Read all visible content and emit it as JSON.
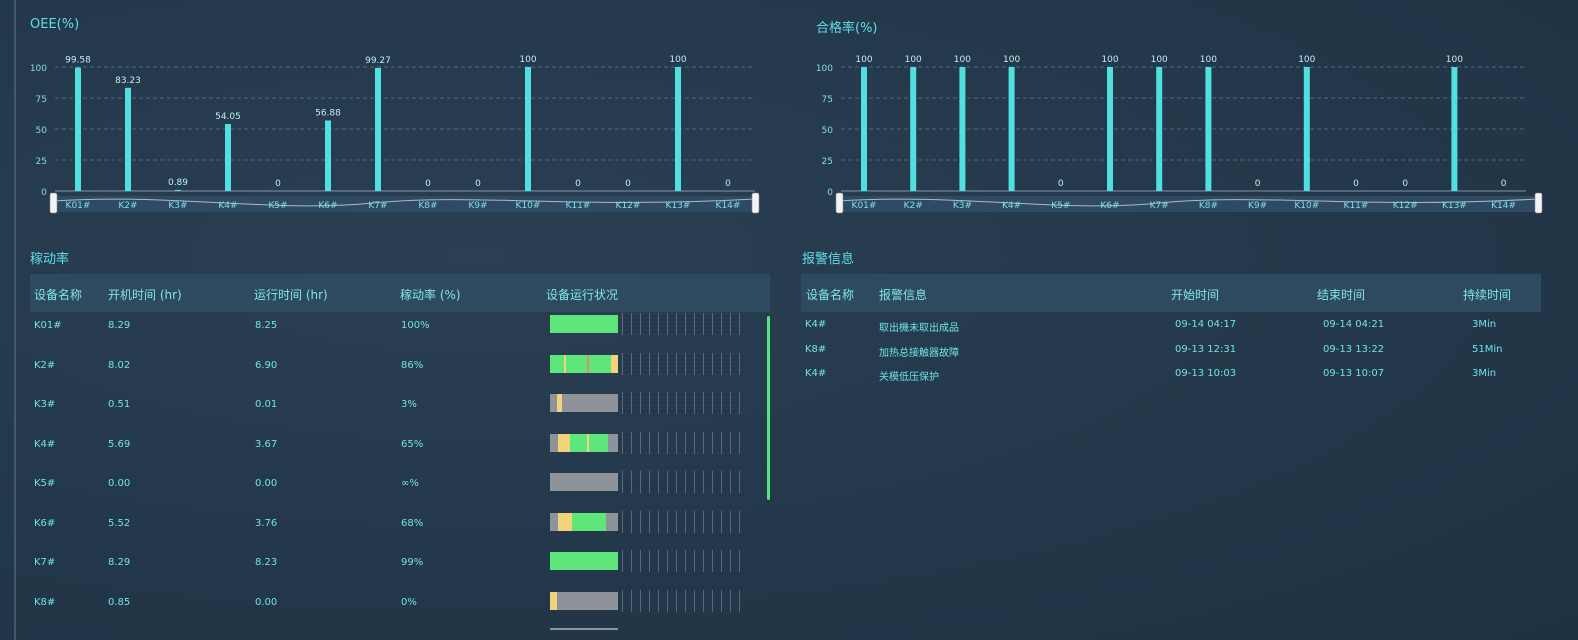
{
  "oee_panel": {
    "title": "OEE(%)"
  },
  "pass_panel": {
    "title": "合格率(%)"
  },
  "utilization_panel": {
    "title": "稼动率",
    "headers": [
      "设备名称",
      "开机时间 (hr)",
      "运行时间 (hr)",
      "稼动率 (%)",
      "设备运行状况"
    ],
    "rows": [
      {
        "name": "K01#",
        "on": "8.29",
        "run": "8.25",
        "rate": "100%"
      },
      {
        "name": "K2#",
        "on": "8.02",
        "run": "6.90",
        "rate": "86%"
      },
      {
        "name": "K3#",
        "on": "0.51",
        "run": "0.01",
        "rate": "3%"
      },
      {
        "name": "K4#",
        "on": "5.69",
        "run": "3.67",
        "rate": "65%"
      },
      {
        "name": "K5#",
        "on": "0.00",
        "run": "0.00",
        "rate": "∞%"
      },
      {
        "name": "K6#",
        "on": "5.52",
        "run": "3.76",
        "rate": "68%"
      },
      {
        "name": "K7#",
        "on": "8.29",
        "run": "8.23",
        "rate": "99%"
      },
      {
        "name": "K8#",
        "on": "0.85",
        "run": "0.00",
        "rate": "0%"
      }
    ],
    "status_colors": {
      "run": "#5ee67a",
      "idle": "#f2d37a",
      "off": "#8e9299",
      "fault": "#e38a6a"
    },
    "status_bars": [
      [
        {
          "s": 0,
          "e": 1,
          "c": "run"
        }
      ],
      [
        {
          "s": 0,
          "e": 0.2,
          "c": "run"
        },
        {
          "s": 0.2,
          "e": 0.24,
          "c": "idle"
        },
        {
          "s": 0.24,
          "e": 0.55,
          "c": "run"
        },
        {
          "s": 0.55,
          "e": 0.58,
          "c": "fault"
        },
        {
          "s": 0.58,
          "e": 0.9,
          "c": "run"
        },
        {
          "s": 0.9,
          "e": 1,
          "c": "idle"
        }
      ],
      [
        {
          "s": 0,
          "e": 0.1,
          "c": "off"
        },
        {
          "s": 0.1,
          "e": 0.18,
          "c": "idle"
        },
        {
          "s": 0.18,
          "e": 1,
          "c": "off"
        }
      ],
      [
        {
          "s": 0,
          "e": 0.12,
          "c": "off"
        },
        {
          "s": 0.12,
          "e": 0.3,
          "c": "idle"
        },
        {
          "s": 0.3,
          "e": 0.55,
          "c": "run"
        },
        {
          "s": 0.55,
          "e": 0.58,
          "c": "idle"
        },
        {
          "s": 0.58,
          "e": 0.85,
          "c": "run"
        },
        {
          "s": 0.85,
          "e": 1,
          "c": "off"
        }
      ],
      [
        {
          "s": 0,
          "e": 1,
          "c": "off"
        }
      ],
      [
        {
          "s": 0,
          "e": 0.12,
          "c": "off"
        },
        {
          "s": 0.12,
          "e": 0.32,
          "c": "idle"
        },
        {
          "s": 0.32,
          "e": 0.82,
          "c": "run"
        },
        {
          "s": 0.82,
          "e": 1,
          "c": "off"
        }
      ],
      [
        {
          "s": 0,
          "e": 1,
          "c": "run"
        }
      ],
      [
        {
          "s": 0,
          "e": 0.1,
          "c": "idle"
        },
        {
          "s": 0.1,
          "e": 1,
          "c": "off"
        }
      ]
    ]
  },
  "alarm_panel": {
    "title": "报警信息",
    "headers": [
      "设备名称",
      "报警信息",
      "开始时间",
      "结束时间",
      "持续时间"
    ],
    "rows": [
      {
        "device": "K4#",
        "message": "取出機未取出成品",
        "start": "09-14 04:17",
        "end": "09-14 04:21",
        "duration": "3Min"
      },
      {
        "device": "K8#",
        "message": "加热总接触器故障",
        "start": "09-13 12:31",
        "end": "09-13 13:22",
        "duration": "51Min"
      },
      {
        "device": "K4#",
        "message": "关模低压保护",
        "start": "09-13 10:03",
        "end": "09-13 10:07",
        "duration": "3Min"
      }
    ]
  },
  "chart_data": [
    {
      "type": "bar",
      "title": "OEE(%)",
      "categories": [
        "K01#",
        "K2#",
        "K3#",
        "K4#",
        "K5#",
        "K6#",
        "K7#",
        "K8#",
        "K9#",
        "K10#",
        "K11#",
        "K12#",
        "K13#",
        "K14#"
      ],
      "values": [
        99.58,
        83.23,
        0.89,
        54.05,
        0,
        56.88,
        99.27,
        0,
        0,
        100,
        0,
        0,
        100,
        0
      ],
      "labels": [
        "99.58",
        "83.23",
        "0.89",
        "54.05",
        "0",
        "56.88",
        "99.27",
        "0",
        "0",
        "100",
        "0",
        "0",
        "100",
        "0"
      ],
      "yticks": [
        "0",
        "25",
        "50",
        "75",
        "100"
      ],
      "ylim": [
        0,
        100
      ],
      "grid": true,
      "bar_color": "#4fe0df"
    },
    {
      "type": "bar",
      "title": "合格率(%)",
      "categories": [
        "K01#",
        "K2#",
        "K3#",
        "K4#",
        "K5#",
        "K6#",
        "K7#",
        "K8#",
        "K9#",
        "K10#",
        "K11#",
        "K12#",
        "K13#",
        "K14#"
      ],
      "values": [
        100,
        100,
        100,
        100,
        0,
        100,
        100,
        100,
        0,
        100,
        0,
        0,
        100,
        0
      ],
      "labels": [
        "100",
        "100",
        "100",
        "100",
        "0",
        "100",
        "100",
        "100",
        "0",
        "100",
        "0",
        "0",
        "100",
        "0"
      ],
      "yticks": [
        "0",
        "25",
        "50",
        "75",
        "100"
      ],
      "ylim": [
        0,
        100
      ],
      "grid": true,
      "bar_color": "#4fe0df"
    }
  ]
}
